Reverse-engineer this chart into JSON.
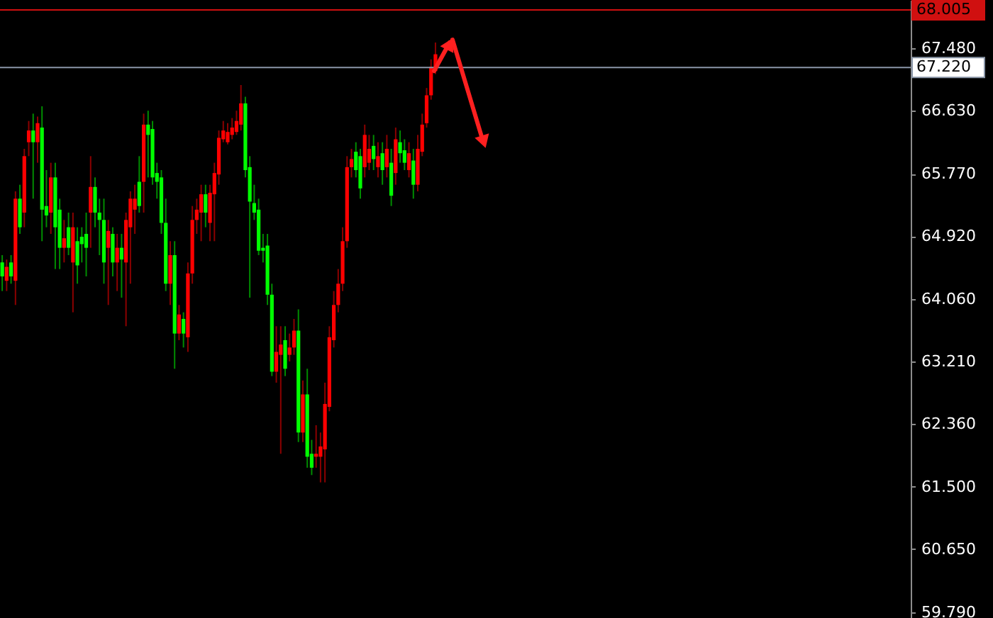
{
  "chart_data": {
    "type": "candlestick",
    "tick_labels": "y",
    "ylim": [
      59.71,
      68.14
    ],
    "yticks": [
      {
        "value": 59.79,
        "label": "59.790"
      },
      {
        "value": 60.65,
        "label": "60.650"
      },
      {
        "value": 61.5,
        "label": "61.500"
      },
      {
        "value": 62.36,
        "label": "62.360"
      },
      {
        "value": 63.21,
        "label": "63.210"
      },
      {
        "value": 64.06,
        "label": "64.060"
      },
      {
        "value": 64.92,
        "label": "64.920"
      },
      {
        "value": 65.77,
        "label": "65.770"
      },
      {
        "value": 66.63,
        "label": "66.630"
      },
      {
        "value": 67.48,
        "label": "67.480"
      }
    ],
    "ref_lines": [
      {
        "axis": "y",
        "value": 68.005,
        "label": "68.005",
        "color": "#d01010"
      },
      {
        "axis": "y",
        "value": 67.22,
        "label": "67.220",
        "color": "#8a96a8"
      }
    ],
    "categories": [
      null,
      null,
      null,
      null,
      null,
      null,
      null,
      null,
      null,
      null,
      null,
      null,
      null,
      null,
      null,
      null,
      null,
      null,
      null,
      null,
      null,
      null,
      null,
      null,
      null,
      null,
      null,
      null,
      null,
      null,
      null,
      null,
      null,
      null,
      null,
      null,
      null,
      null,
      null,
      null,
      null,
      null,
      null,
      null,
      null,
      null,
      null,
      null,
      null,
      null,
      null,
      null,
      null,
      null,
      null,
      null,
      null,
      null,
      null,
      null,
      null,
      null,
      null,
      null,
      null,
      null,
      null,
      null,
      null,
      null,
      null,
      null,
      null,
      null,
      null,
      null,
      null,
      null,
      null,
      null,
      null,
      null,
      null,
      null,
      null,
      null,
      null,
      null,
      null,
      null,
      null,
      null,
      null,
      null,
      null,
      null,
      null,
      null,
      null,
      null,
      null,
      null,
      null,
      null,
      null,
      null,
      null,
      null,
      null,
      null,
      null,
      null,
      null,
      null,
      null,
      null,
      null,
      null,
      null,
      null,
      null,
      null,
      null,
      null,
      null,
      null,
      null,
      null,
      null,
      null,
      null,
      null,
      null,
      null,
      null,
      null,
      null,
      null,
      null,
      null,
      null,
      null,
      null,
      null,
      null,
      null,
      null,
      null,
      null,
      null,
      null,
      null,
      null,
      null,
      null,
      null,
      null,
      null,
      null,
      null,
      null,
      null,
      null,
      null,
      null,
      null,
      null,
      null,
      null,
      null,
      null,
      null,
      null,
      null,
      null,
      null,
      null,
      null,
      null,
      null,
      null,
      null,
      null,
      null,
      null,
      null,
      null,
      null,
      null,
      null,
      null,
      null,
      null,
      null,
      null,
      null,
      null,
      null,
      null,
      null,
      null,
      null,
      null,
      null,
      null,
      null
    ],
    "ohlc": [
      [
        64.56,
        64.66,
        64.17,
        64.37
      ],
      [
        64.31,
        64.6,
        64.17,
        64.5
      ],
      [
        64.56,
        64.66,
        64.27,
        64.37
      ],
      [
        64.31,
        65.53,
        63.98,
        65.43
      ],
      [
        65.43,
        65.62,
        64.95,
        65.04
      ],
      [
        65.24,
        66.11,
        65.04,
        66.01
      ],
      [
        66.2,
        66.49,
        66.01,
        66.36
      ],
      [
        66.36,
        66.59,
        65.43,
        66.2
      ],
      [
        66.2,
        66.55,
        65.92,
        66.46
      ],
      [
        66.4,
        66.69,
        64.85,
        65.28
      ],
      [
        65.33,
        65.82,
        65.04,
        65.2
      ],
      [
        65.24,
        65.92,
        64.95,
        65.72
      ],
      [
        65.72,
        65.92,
        64.47,
        65.04
      ],
      [
        65.28,
        65.43,
        64.47,
        64.76
      ],
      [
        64.76,
        65.14,
        64.56,
        64.89
      ],
      [
        65.04,
        65.24,
        64.66,
        64.76
      ],
      [
        64.56,
        65.24,
        63.88,
        65.04
      ],
      [
        64.85,
        65.04,
        64.27,
        64.52
      ],
      [
        64.91,
        65.04,
        64.56,
        64.81
      ],
      [
        64.95,
        65.24,
        64.37,
        64.76
      ],
      [
        65.24,
        66.01,
        64.76,
        65.59
      ],
      [
        65.59,
        65.72,
        65.04,
        65.24
      ],
      [
        65.24,
        65.43,
        64.66,
        65.14
      ],
      [
        65.14,
        65.43,
        64.27,
        64.56
      ],
      [
        64.76,
        65.14,
        63.98,
        64.99
      ],
      [
        64.95,
        65.04,
        64.37,
        64.56
      ],
      [
        64.56,
        64.95,
        64.17,
        64.76
      ],
      [
        64.76,
        64.95,
        64.08,
        64.6
      ],
      [
        64.56,
        65.24,
        63.69,
        65.14
      ],
      [
        65.04,
        65.53,
        64.27,
        65.43
      ],
      [
        65.28,
        65.62,
        64.95,
        65.43
      ],
      [
        65.66,
        66.01,
        65.24,
        65.33
      ],
      [
        65.66,
        66.59,
        65.24,
        66.44
      ],
      [
        66.44,
        66.63,
        65.72,
        66.3
      ],
      [
        66.38,
        66.49,
        65.62,
        65.72
      ],
      [
        65.78,
        65.92,
        65.43,
        65.66
      ],
      [
        65.72,
        65.82,
        64.95,
        65.1
      ],
      [
        65.1,
        65.43,
        64.17,
        64.27
      ],
      [
        64.27,
        64.85,
        63.98,
        64.66
      ],
      [
        64.66,
        64.85,
        63.11,
        63.59
      ],
      [
        63.59,
        63.98,
        63.5,
        63.85
      ],
      [
        63.79,
        63.88,
        63.4,
        63.59
      ],
      [
        63.54,
        64.56,
        63.34,
        64.41
      ],
      [
        64.41,
        65.33,
        64.27,
        65.14
      ],
      [
        65.14,
        65.43,
        64.95,
        65.28
      ],
      [
        65.24,
        65.62,
        64.85,
        65.49
      ],
      [
        65.49,
        65.62,
        65.04,
        65.24
      ],
      [
        65.1,
        65.62,
        64.85,
        65.51
      ],
      [
        65.49,
        65.92,
        64.85,
        65.78
      ],
      [
        65.76,
        66.36,
        65.62,
        66.26
      ],
      [
        66.24,
        66.49,
        66.2,
        66.36
      ],
      [
        66.2,
        66.46,
        66.17,
        66.34
      ],
      [
        66.3,
        66.53,
        66.24,
        66.4
      ],
      [
        66.34,
        66.63,
        66.3,
        66.49
      ],
      [
        66.44,
        66.98,
        66.36,
        66.73
      ],
      [
        66.73,
        66.82,
        65.72,
        65.82
      ],
      [
        65.86,
        66.01,
        64.08,
        65.39
      ],
      [
        65.37,
        65.62,
        65.14,
        65.24
      ],
      [
        65.28,
        65.43,
        64.66,
        64.72
      ],
      [
        64.76,
        64.95,
        64.56,
        64.72
      ],
      [
        64.79,
        64.95,
        63.98,
        64.12
      ],
      [
        64.12,
        64.27,
        63.01,
        63.07
      ],
      [
        63.07,
        63.69,
        62.92,
        63.34
      ],
      [
        63.3,
        63.69,
        61.95,
        63.44
      ],
      [
        63.5,
        63.69,
        63.01,
        63.11
      ],
      [
        63.3,
        63.59,
        63.21,
        63.4
      ],
      [
        63.4,
        63.79,
        63.3,
        63.63
      ],
      [
        63.63,
        63.92,
        62.11,
        62.24
      ],
      [
        62.24,
        62.95,
        62.11,
        62.76
      ],
      [
        62.76,
        63.11,
        61.76,
        61.91
      ],
      [
        61.95,
        62.14,
        61.66,
        61.76
      ],
      [
        61.91,
        62.34,
        61.76,
        61.95
      ],
      [
        61.91,
        62.24,
        61.56,
        62.05
      ],
      [
        62.01,
        62.92,
        61.56,
        62.63
      ],
      [
        62.59,
        63.69,
        62.53,
        63.54
      ],
      [
        63.5,
        64.17,
        63.4,
        63.98
      ],
      [
        63.98,
        64.47,
        63.88,
        64.27
      ],
      [
        64.27,
        65.04,
        64.17,
        64.85
      ],
      [
        64.85,
        66.01,
        64.76,
        65.86
      ],
      [
        65.86,
        66.11,
        65.72,
        65.97
      ],
      [
        66.07,
        66.2,
        65.72,
        65.82
      ],
      [
        66.01,
        66.11,
        65.43,
        65.57
      ],
      [
        65.86,
        66.44,
        65.72,
        66.3
      ],
      [
        65.92,
        66.3,
        65.82,
        66.11
      ],
      [
        66.15,
        66.3,
        65.82,
        65.97
      ],
      [
        65.86,
        66.2,
        65.72,
        66.01
      ],
      [
        66.05,
        66.2,
        65.62,
        65.82
      ],
      [
        65.86,
        66.3,
        65.72,
        66.11
      ],
      [
        65.92,
        66.11,
        65.33,
        65.47
      ],
      [
        65.78,
        66.4,
        65.62,
        66.24
      ],
      [
        66.2,
        66.36,
        65.92,
        66.05
      ],
      [
        66.09,
        66.24,
        65.82,
        65.92
      ],
      [
        65.82,
        66.2,
        65.72,
        66.05
      ],
      [
        65.95,
        66.11,
        65.43,
        65.62
      ],
      [
        65.62,
        66.3,
        65.53,
        66.11
      ],
      [
        66.07,
        66.59,
        66.01,
        66.44
      ],
      [
        66.46,
        66.94,
        66.4,
        66.84
      ],
      [
        66.84,
        67.33,
        66.78,
        67.23
      ],
      [
        67.17,
        67.56,
        67.13,
        67.4
      ],
      null,
      null,
      null,
      null,
      null,
      null,
      null,
      null,
      null,
      null,
      null,
      null,
      null,
      null,
      null,
      null,
      null,
      null,
      null,
      null,
      null,
      null,
      null,
      null,
      null,
      null,
      null,
      null,
      null,
      null,
      null,
      null,
      null,
      null,
      null,
      null,
      null,
      null,
      null,
      null,
      null,
      null,
      null,
      null,
      null,
      null,
      null,
      null,
      null,
      null,
      null,
      null,
      null,
      null,
      null,
      null,
      null,
      null,
      null,
      null,
      null,
      null,
      null,
      null,
      null,
      null,
      null,
      null,
      null,
      null,
      null,
      null,
      null,
      null,
      null,
      null,
      null,
      null,
      null,
      null,
      null,
      null,
      null,
      null,
      null,
      null,
      null,
      null,
      null,
      null,
      null,
      null,
      null,
      null,
      null,
      null,
      null,
      null,
      null,
      null,
      null,
      null,
      null,
      null,
      null,
      null,
      null
    ],
    "colors": [
      "#00ff00",
      "#ff0000",
      "#00ff00",
      "#ff0000",
      "#00ff00",
      "#ff0000",
      "#ff0000",
      "#00ff00",
      "#ff0000",
      "#00ff00",
      "#00ff00",
      "#ff0000",
      "#00ff00",
      "#00ff00",
      "#ff0000",
      "#00ff00",
      "#ff0000",
      "#00ff00",
      "#00ff00",
      "#00ff00",
      "#ff0000",
      "#00ff00",
      "#00ff00",
      "#00ff00",
      "#ff0000",
      "#00ff00",
      "#ff0000",
      "#00ff00",
      "#ff0000",
      "#ff0000",
      "#ff0000",
      "#00ff00",
      "#ff0000",
      "#00ff00",
      "#00ff00",
      "#00ff00",
      "#00ff00",
      "#00ff00",
      "#ff0000",
      "#00ff00",
      "#ff0000",
      "#00ff00",
      "#ff0000",
      "#ff0000",
      "#ff0000",
      "#ff0000",
      "#00ff00",
      "#ff0000",
      "#ff0000",
      "#ff0000",
      "#ff0000",
      "#ff0000",
      "#ff0000",
      "#ff0000",
      "#ff0000",
      "#00ff00",
      "#00ff00",
      "#00ff00",
      "#00ff00",
      "#00ff00",
      "#00ff00",
      "#00ff00",
      "#ff0000",
      "#ff0000",
      "#00ff00",
      "#ff0000",
      "#ff0000",
      "#00ff00",
      "#ff0000",
      "#00ff00",
      "#00ff00",
      "#ff0000",
      "#ff0000",
      "#ff0000",
      "#ff0000",
      "#ff0000",
      "#ff0000",
      "#ff0000",
      "#ff0000",
      "#ff0000",
      "#00ff00",
      "#00ff00",
      "#ff0000",
      "#ff0000",
      "#00ff00",
      "#ff0000",
      "#00ff00",
      "#ff0000",
      "#00ff00",
      "#ff0000",
      "#00ff00",
      "#00ff00",
      "#ff0000",
      "#00ff00",
      "#ff0000",
      "#ff0000",
      "#ff0000",
      "#ff0000",
      "#ff0000",
      null,
      null,
      null,
      null,
      null,
      null,
      null,
      null,
      null,
      null,
      null,
      null,
      null,
      null,
      null,
      null,
      null,
      null,
      null,
      null,
      null,
      null,
      null,
      null,
      null,
      null,
      null,
      null,
      null,
      null,
      null,
      null,
      null,
      null,
      null,
      null,
      null,
      null,
      null,
      null,
      null,
      null,
      null,
      null,
      null,
      null,
      null,
      null,
      null,
      null,
      null,
      null,
      null,
      null,
      null,
      null,
      null,
      null,
      null,
      null,
      null,
      null,
      null,
      null,
      null,
      null,
      null,
      null,
      null,
      null,
      null,
      null,
      null,
      null,
      null,
      null,
      null,
      null,
      null,
      null,
      null,
      null,
      null,
      null,
      null,
      null,
      null,
      null,
      null,
      null,
      null,
      null,
      null,
      null,
      null,
      null,
      null,
      null,
      null,
      null,
      null,
      null,
      null,
      null,
      null,
      null,
      null
    ]
  }
}
